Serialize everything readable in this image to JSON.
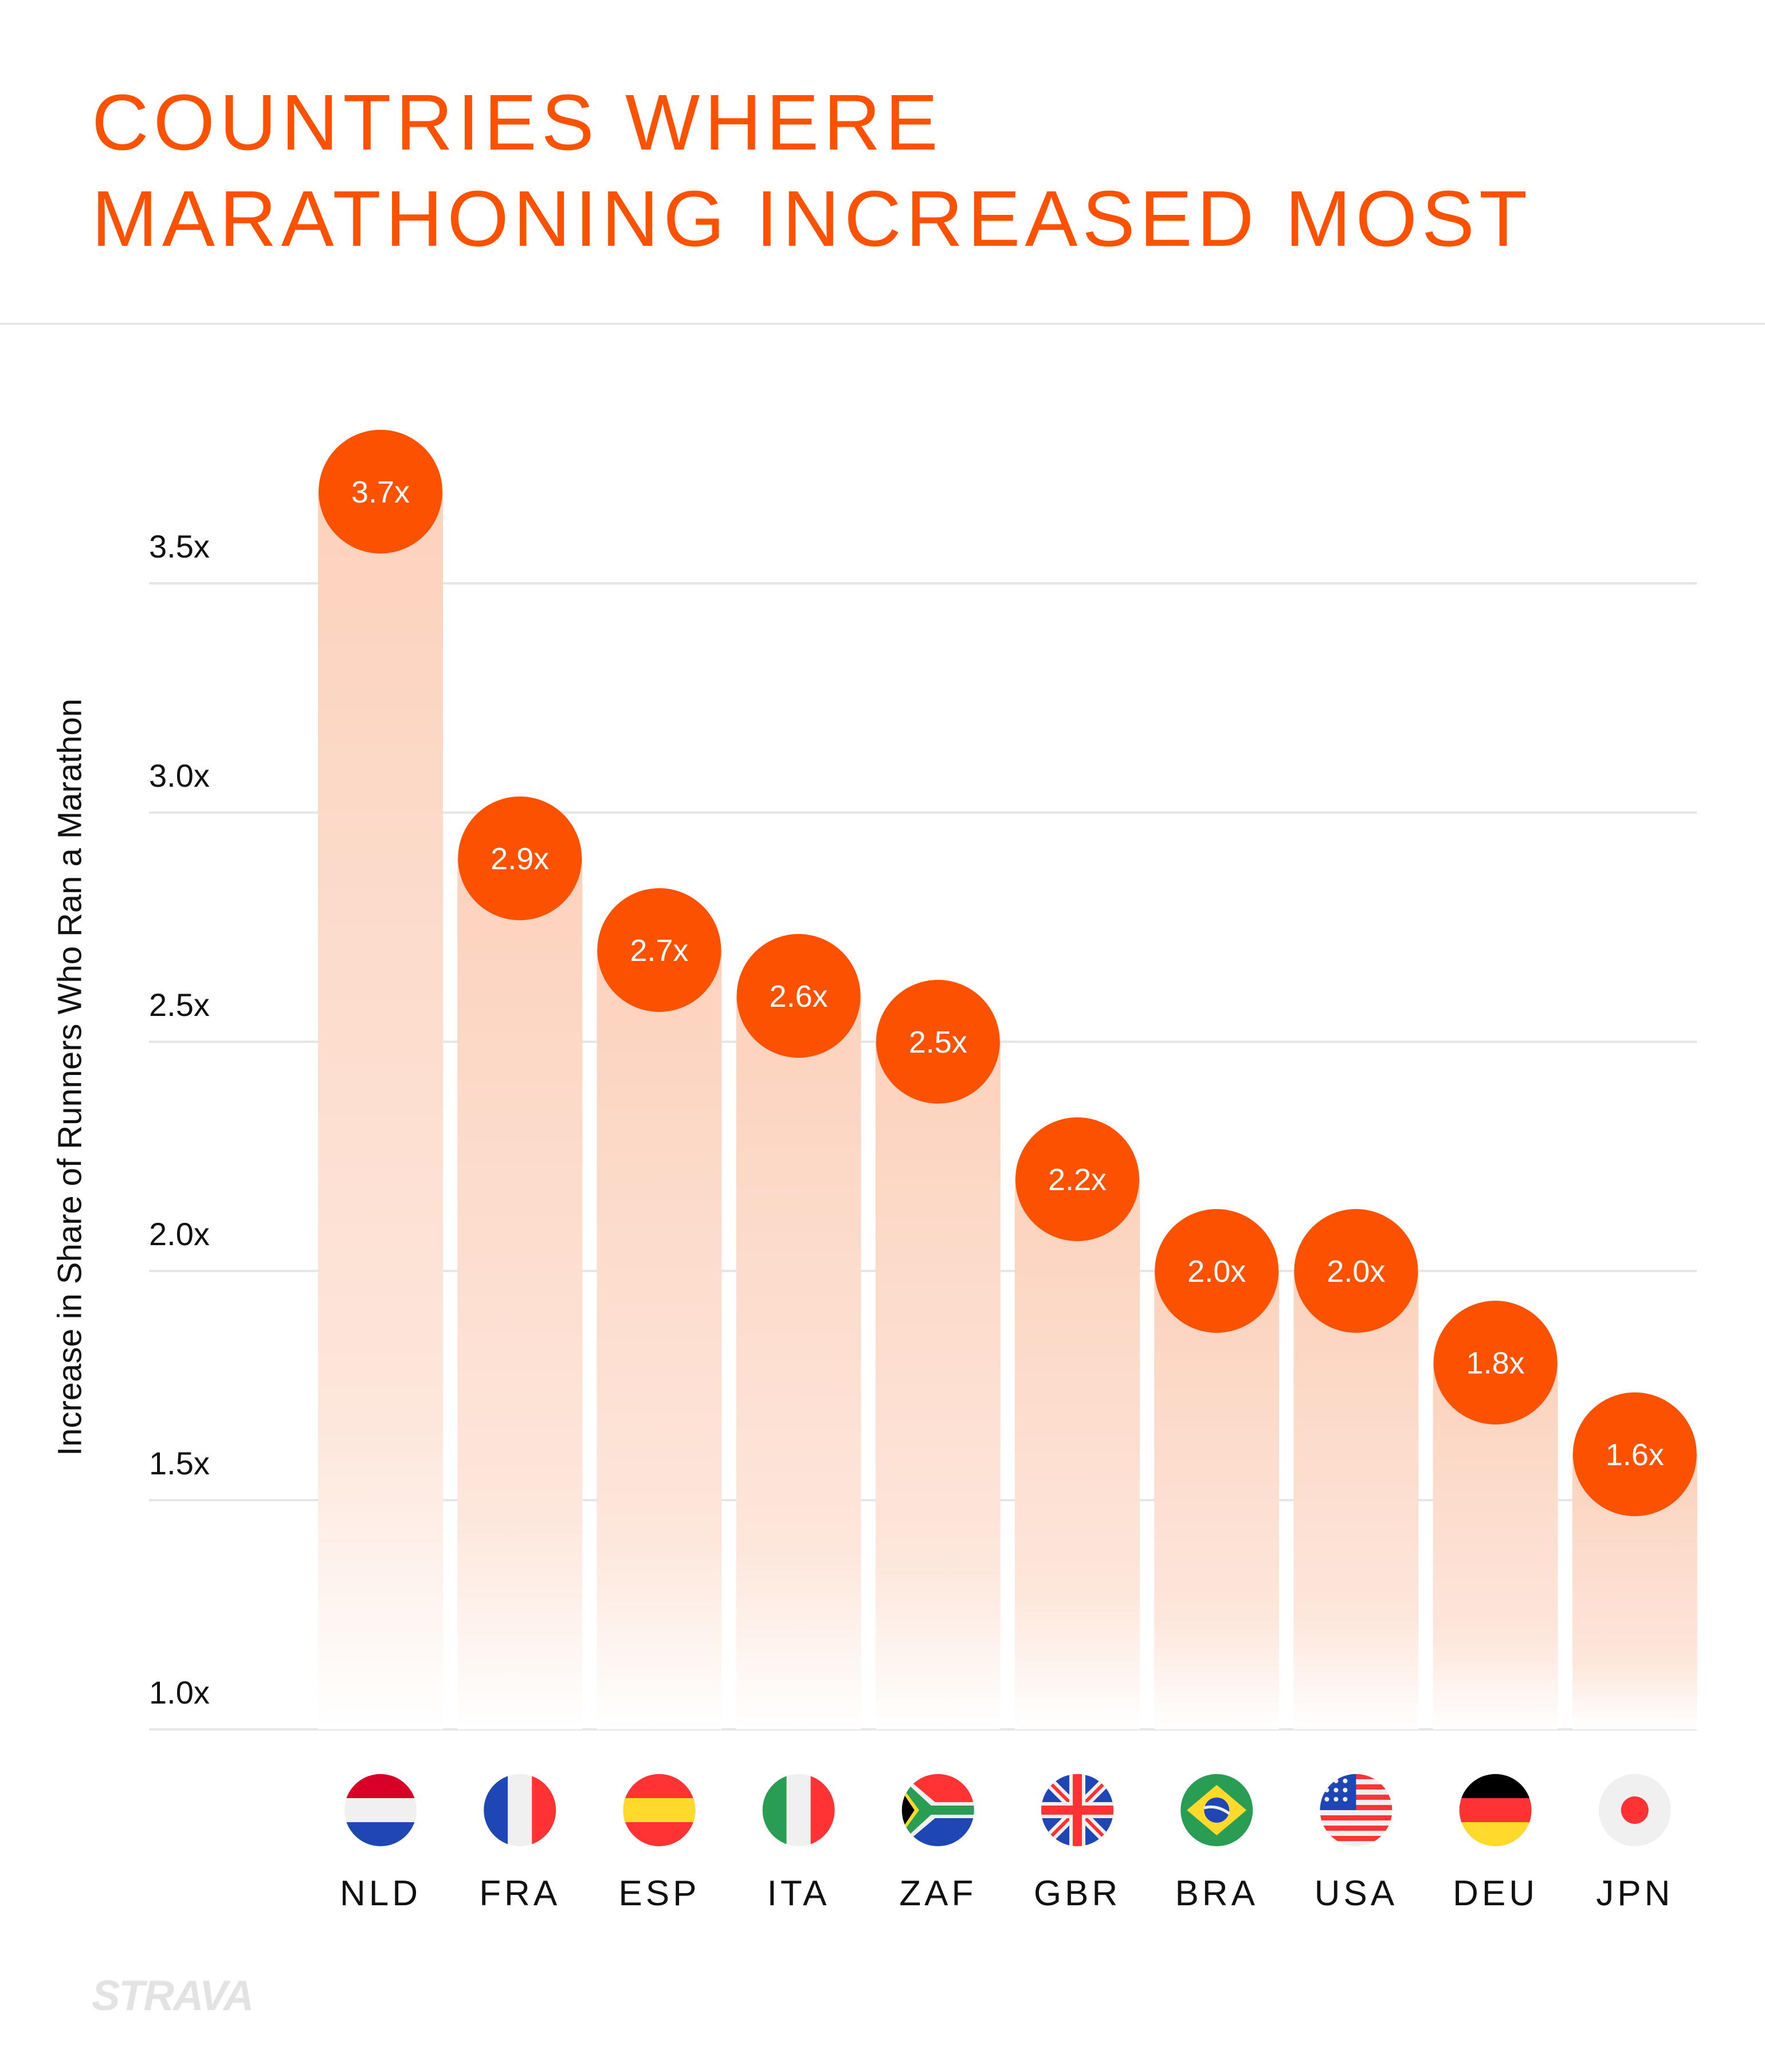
{
  "title_lines": [
    "COUNTRIES WHERE",
    "MARATHONING INCREASED MOST"
  ],
  "logo": "STRAVA",
  "colors": {
    "accent": "#fc5200",
    "bar_top": "#fcd2bd",
    "grid": "#e6e6e6",
    "label": "#111111"
  },
  "chart_data": {
    "type": "bar",
    "title": "COUNTRIES WHERE MARATHONING INCREASED MOST",
    "xlabel": "",
    "ylabel": "Increase in Share of Runners Who Ran a Marathon",
    "ylim": [
      1.0,
      3.5
    ],
    "yticks": [
      1.0,
      1.5,
      2.0,
      2.5,
      3.0,
      3.5
    ],
    "ytick_labels": [
      "1.0x",
      "1.5x",
      "2.0x",
      "2.5x",
      "3.0x",
      "3.5x"
    ],
    "grid": true,
    "categories": [
      "NLD",
      "FRA",
      "ESP",
      "ITA",
      "ZAF",
      "GBR",
      "BRA",
      "USA",
      "DEU",
      "JPN"
    ],
    "values": [
      3.7,
      2.9,
      2.7,
      2.6,
      2.5,
      2.2,
      2.0,
      2.0,
      1.8,
      1.6
    ],
    "data_labels": [
      "3.7x",
      "2.9x",
      "2.7x",
      "2.6x",
      "2.5x",
      "2.2x",
      "2.0x",
      "2.0x",
      "1.8x",
      "1.6x"
    ],
    "flags": [
      "netherlands-flag",
      "france-flag",
      "spain-flag",
      "italy-flag",
      "south-africa-flag",
      "uk-flag",
      "brazil-flag",
      "usa-flag",
      "germany-flag",
      "japan-flag"
    ]
  }
}
